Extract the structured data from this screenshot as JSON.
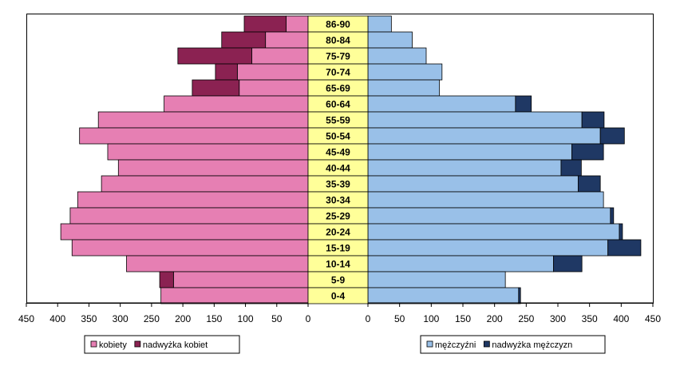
{
  "chart_data": {
    "type": "bar",
    "orientation": "horizontal",
    "layout": "population-pyramid",
    "title": "",
    "categories": [
      "86-90",
      "80-84",
      "75-79",
      "70-74",
      "65-69",
      "60-64",
      "55-59",
      "50-54",
      "45-49",
      "40-44",
      "35-39",
      "30-34",
      "25-29",
      "20-24",
      "15-19",
      "10-14",
      "5-9",
      "0-4"
    ],
    "left_panel": {
      "xlim": [
        450,
        0
      ],
      "ticks": [
        450,
        400,
        350,
        300,
        250,
        200,
        150,
        100,
        50,
        0
      ],
      "series": [
        {
          "name": "kobiety",
          "color": "#e67fb3",
          "values": [
            35,
            68,
            90,
            113,
            110,
            230,
            335,
            365,
            320,
            303,
            330,
            368,
            380,
            395,
            377,
            290,
            215,
            235
          ]
        },
        {
          "name": "nadwyżka kobiet",
          "color": "#8b2252",
          "values": [
            67,
            70,
            118,
            35,
            75,
            0,
            0,
            0,
            0,
            0,
            0,
            0,
            0,
            0,
            0,
            0,
            22,
            0
          ]
        }
      ],
      "legend": [
        "kobiety",
        "nadwyżka kobiet"
      ]
    },
    "right_panel": {
      "xlim": [
        0,
        450
      ],
      "ticks": [
        0,
        50,
        100,
        150,
        200,
        250,
        300,
        350,
        400,
        450
      ],
      "series": [
        {
          "name": "mężczyźni",
          "color": "#99c0e8",
          "values": [
            37,
            70,
            92,
            117,
            113,
            233,
            338,
            367,
            322,
            305,
            332,
            372,
            383,
            397,
            379,
            293,
            217,
            238
          ]
        },
        {
          "name": "nadwyżka mężczyzn",
          "color": "#1f3864",
          "values": [
            0,
            0,
            0,
            0,
            0,
            25,
            35,
            38,
            50,
            32,
            35,
            0,
            5,
            5,
            52,
            45,
            0,
            3
          ]
        }
      ],
      "legend": [
        "mężczyźni",
        "nadwyżka mężczyzn"
      ]
    },
    "grid": false
  }
}
